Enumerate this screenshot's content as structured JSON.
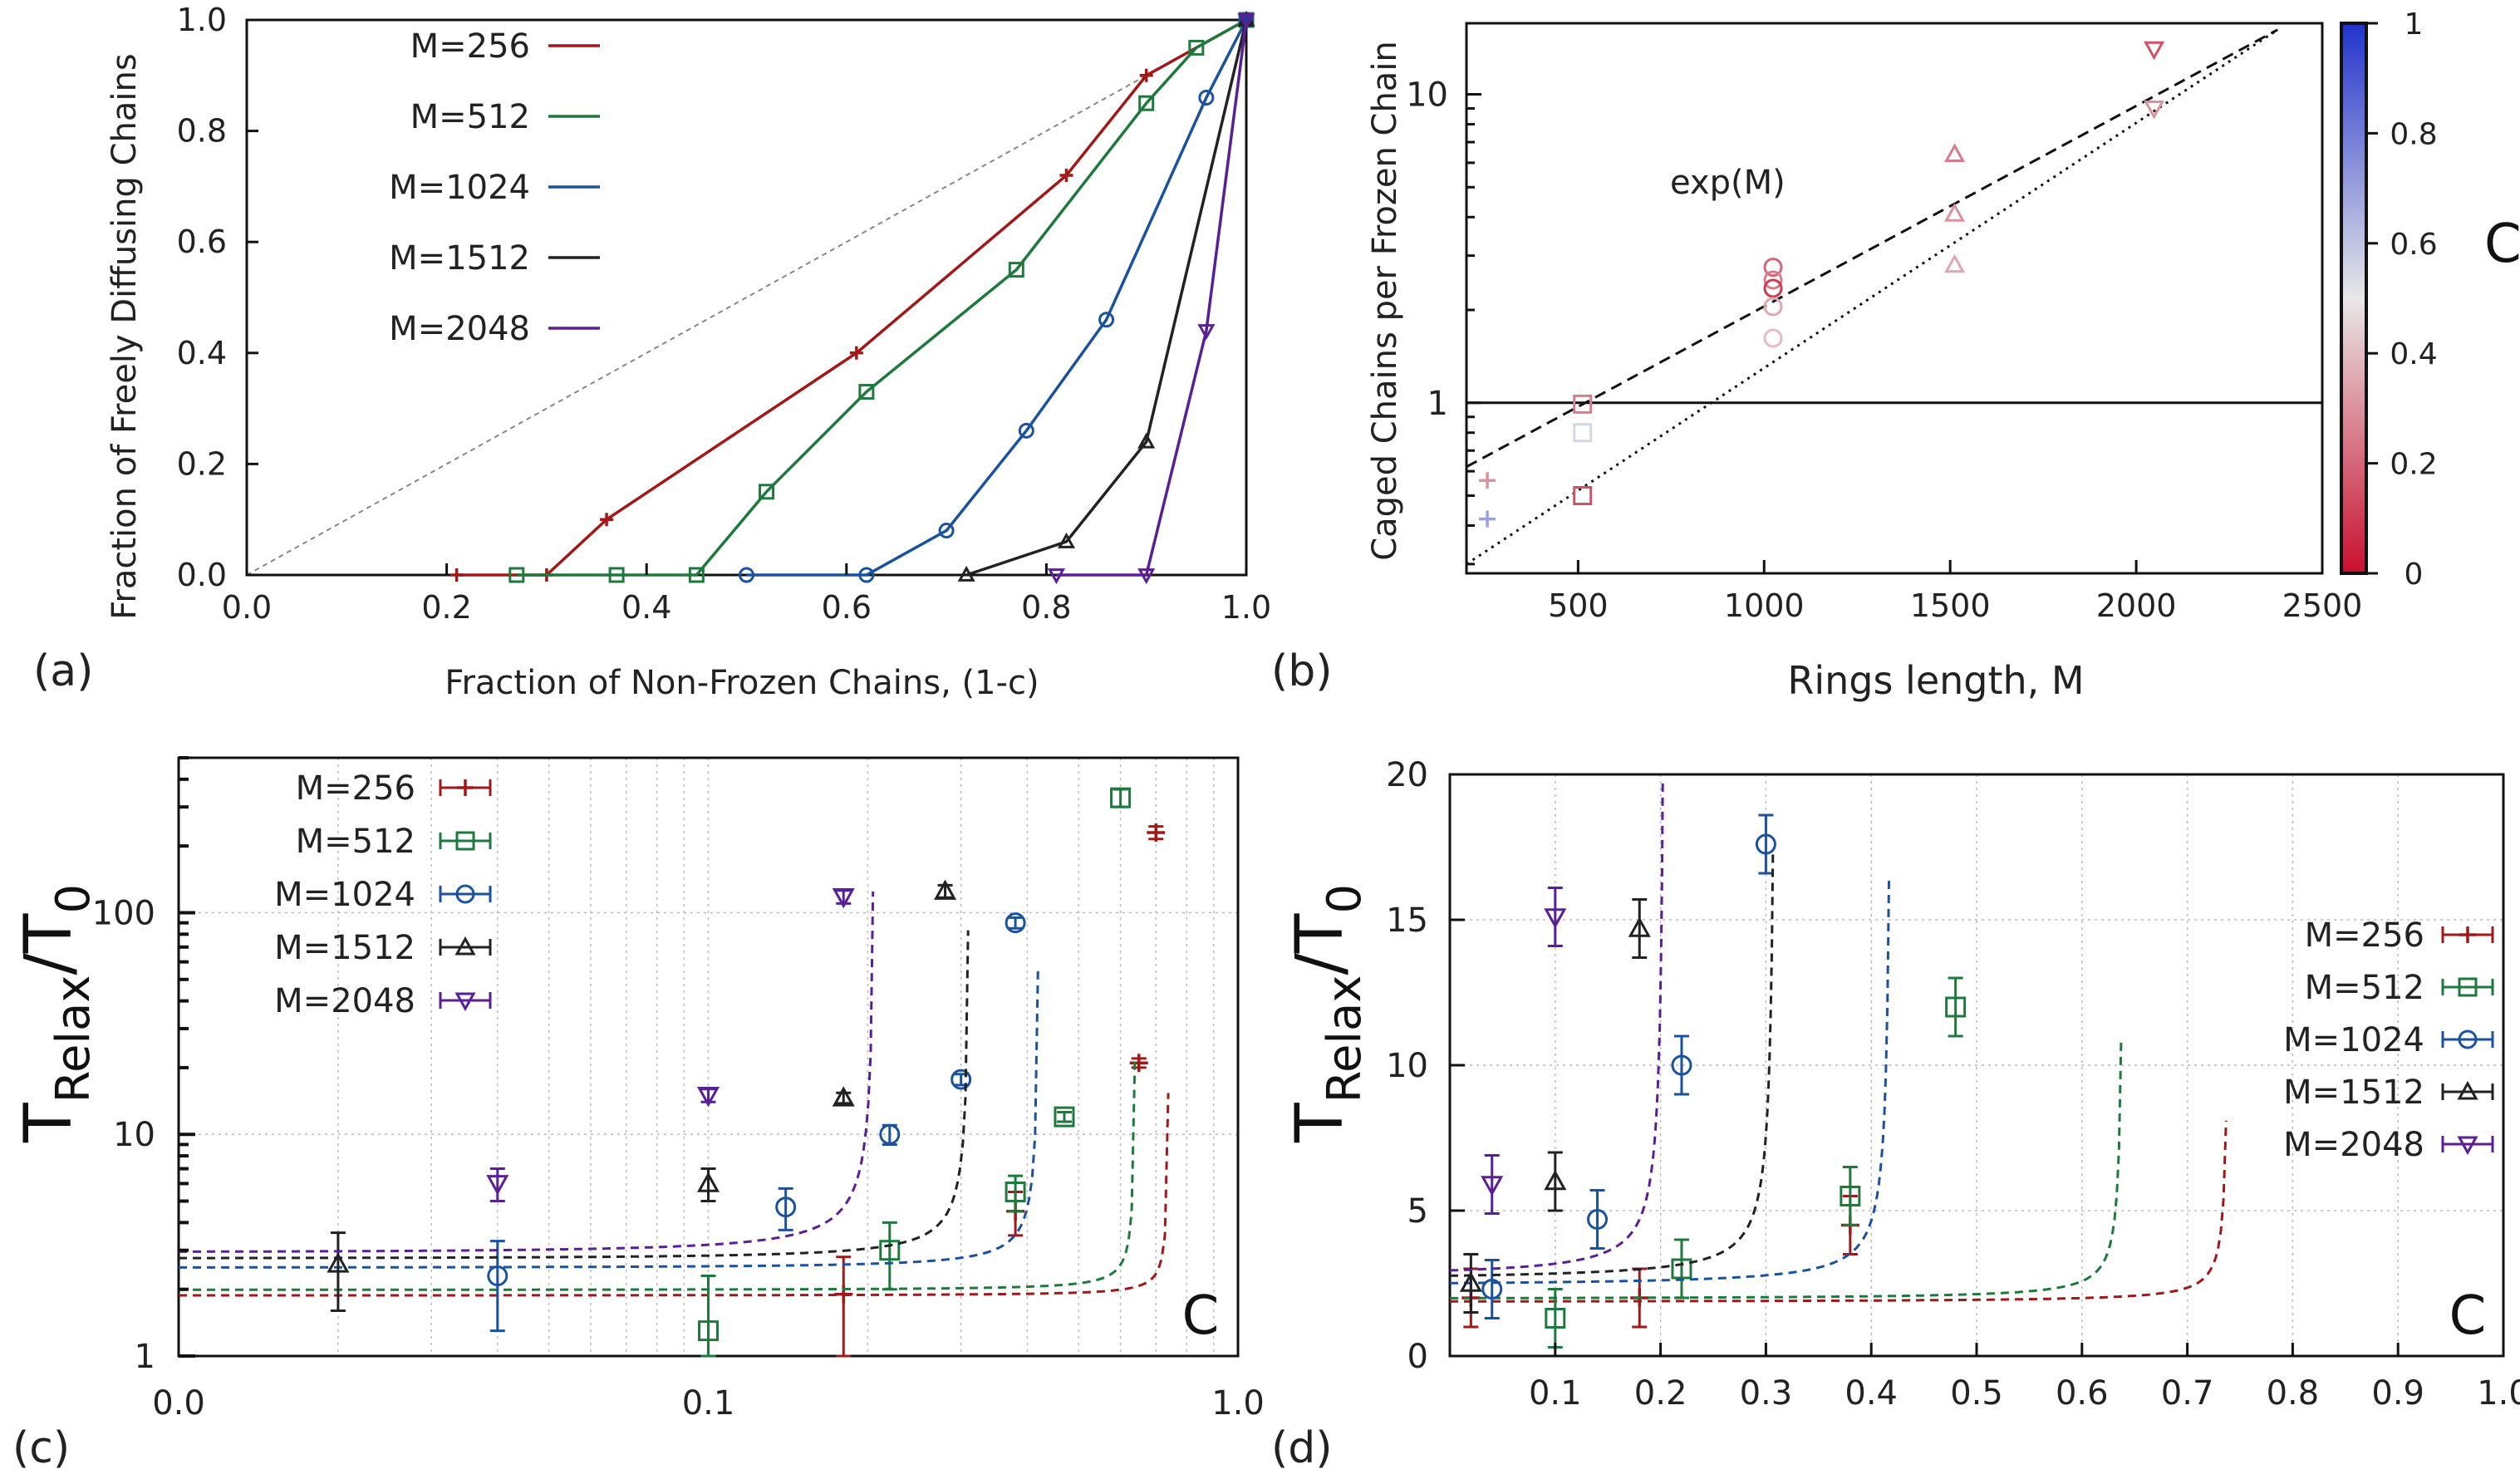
{
  "chart_data": [
    {
      "panel": "(a)",
      "type": "line",
      "xlabel": "Fraction of Non-Frozen Chains, (1-c)",
      "ylabel": "Fraction of Freely Diffusing Chains",
      "xlim": [
        0.0,
        1.0
      ],
      "ylim": [
        0.0,
        1.0
      ],
      "xticks": [
        "0.0",
        "0.2",
        "0.4",
        "0.6",
        "0.8",
        "1.0"
      ],
      "yticks": [
        "0.0",
        "0.2",
        "0.4",
        "0.6",
        "0.8",
        "1.0"
      ],
      "grid": false,
      "diagonal_reference": true,
      "legend_position": "top-left",
      "series": [
        {
          "name": "M=256",
          "color": "#a01818",
          "marker": "plus",
          "x": [
            0.21,
            0.3,
            0.36,
            0.61,
            0.82,
            0.9,
            1.0
          ],
          "y": [
            0.0,
            0.0,
            0.1,
            0.4,
            0.72,
            0.9,
            1.0
          ]
        },
        {
          "name": "M=512",
          "color": "#1e7a3c",
          "marker": "square",
          "x": [
            0.27,
            0.37,
            0.45,
            0.52,
            0.62,
            0.77,
            0.9,
            0.95,
            1.0
          ],
          "y": [
            0.0,
            0.0,
            0.0,
            0.15,
            0.33,
            0.55,
            0.85,
            0.95,
            1.0
          ]
        },
        {
          "name": "M=1024",
          "color": "#1a52a0",
          "marker": "circle",
          "x": [
            0.5,
            0.62,
            0.7,
            0.78,
            0.86,
            0.96,
            1.0
          ],
          "y": [
            0.0,
            0.0,
            0.08,
            0.26,
            0.46,
            0.86,
            1.0
          ]
        },
        {
          "name": "M=1512",
          "color": "#222222",
          "marker": "triangle-up",
          "x": [
            0.72,
            0.82,
            0.9,
            1.0
          ],
          "y": [
            0.0,
            0.06,
            0.24,
            1.0
          ]
        },
        {
          "name": "M=2048",
          "color": "#5a1e96",
          "marker": "triangle-down",
          "x": [
            0.81,
            0.9,
            0.96,
            1.0
          ],
          "y": [
            0.0,
            0.0,
            0.44,
            1.0
          ]
        }
      ]
    },
    {
      "panel": "(b)",
      "type": "scatter",
      "xlabel": "Rings length, M",
      "ylabel": "Caged Chains per Frozen Chain",
      "xlim": [
        200,
        2500
      ],
      "ylim": [
        0.28,
        17
      ],
      "yscale": "log",
      "xticks": [
        "500",
        "1000",
        "1500",
        "2000",
        "2500"
      ],
      "yticks": [
        "1",
        "10"
      ],
      "annotation": "exp(M)",
      "colorbar": {
        "label": "C",
        "ticks": [
          "0",
          "0.2",
          "0.4",
          "0.6",
          "0.8",
          "1"
        ]
      },
      "reference_lines": [
        {
          "style": "dashed",
          "x": [
            200,
            2380
          ],
          "y": [
            0.62,
            16.2
          ]
        },
        {
          "style": "dotted",
          "x": [
            200,
            2380
          ],
          "y": [
            0.3,
            16.2
          ]
        },
        {
          "style": "solid",
          "x": [
            200,
            2500
          ],
          "y": [
            1.0,
            1.0
          ]
        }
      ],
      "points": [
        {
          "M": 256,
          "y": 0.56,
          "c": 0.3,
          "marker": "plus"
        },
        {
          "M": 256,
          "y": 0.42,
          "c": 0.7,
          "marker": "plus"
        },
        {
          "M": 512,
          "y": 0.99,
          "c": 0.25,
          "marker": "square"
        },
        {
          "M": 512,
          "y": 0.8,
          "c": 0.55,
          "marker": "square"
        },
        {
          "M": 512,
          "y": 0.5,
          "c": 0.15,
          "marker": "square"
        },
        {
          "M": 1024,
          "y": 2.75,
          "c": 0.2,
          "marker": "circle"
        },
        {
          "M": 1024,
          "y": 2.5,
          "c": 0.25,
          "marker": "circle"
        },
        {
          "M": 1024,
          "y": 2.35,
          "c": 0.1,
          "marker": "circle"
        },
        {
          "M": 1024,
          "y": 2.05,
          "c": 0.35,
          "marker": "circle"
        },
        {
          "M": 1024,
          "y": 1.62,
          "c": 0.4,
          "marker": "circle"
        },
        {
          "M": 1512,
          "y": 6.4,
          "c": 0.25,
          "marker": "triangle-up"
        },
        {
          "M": 1512,
          "y": 4.1,
          "c": 0.3,
          "marker": "triangle-up"
        },
        {
          "M": 1512,
          "y": 2.8,
          "c": 0.35,
          "marker": "triangle-up"
        },
        {
          "M": 2048,
          "y": 14.0,
          "c": 0.15,
          "marker": "triangle-down"
        },
        {
          "M": 2048,
          "y": 9.0,
          "c": 0.3,
          "marker": "triangle-down"
        }
      ]
    },
    {
      "panel": "(c)",
      "type": "scatter",
      "xlabel": "C",
      "ylabel_main": "T",
      "ylabel_sub": "Relax",
      "ylabel_tail": "/T",
      "ylabel_tail_sub": "0",
      "xscale": "log",
      "yscale": "log",
      "xlim": [
        0.01,
        1.0
      ],
      "ylim": [
        1,
        500
      ],
      "xticks": [
        "0.0",
        "0.1",
        "1.0"
      ],
      "yticks": [
        "1",
        "10",
        "100"
      ],
      "grid": true,
      "legend_position": "top-left",
      "series": [
        {
          "name": "M=256",
          "color": "#a01818",
          "marker": "plus",
          "x": [
            0.18,
            0.38,
            0.65,
            0.7
          ],
          "y": [
            1.9,
            4.5,
            21,
            230
          ],
          "err": [
            0.9,
            1.0,
            1.0,
            15
          ],
          "fit": {
            "a": 1.85,
            "b": 0.02,
            "cc": 0.74
          }
        },
        {
          "name": "M=512",
          "color": "#1e7a3c",
          "marker": "square",
          "x": [
            0.1,
            0.22,
            0.38,
            0.47,
            0.6
          ],
          "y": [
            1.3,
            3.0,
            5.5,
            12,
            330
          ],
          "err": [
            1.0,
            1.0,
            1.0,
            0.6,
            30
          ],
          "fit": {
            "a": 1.95,
            "b": 0.025,
            "cc": 0.64
          }
        },
        {
          "name": "M=1024",
          "color": "#1a52a0",
          "marker": "circle",
          "x": [
            0.04,
            0.14,
            0.22,
            0.3,
            0.38
          ],
          "y": [
            2.3,
            4.7,
            10,
            17.7,
            90
          ],
          "err": [
            1.0,
            1.0,
            1.0,
            1.0,
            5
          ],
          "fit": {
            "a": 2.4,
            "b": 0.045,
            "cc": 0.42
          }
        },
        {
          "name": "M=1512",
          "color": "#222222",
          "marker": "triangle-up",
          "x": [
            0.02,
            0.1,
            0.18,
            0.28
          ],
          "y": [
            2.6,
            6.0,
            14.6,
            125
          ],
          "err": [
            1.0,
            1.0,
            0.8,
            8
          ],
          "fit": {
            "a": 2.6,
            "b": 0.05,
            "cc": 0.31
          }
        },
        {
          "name": "M=2048",
          "color": "#5a1e96",
          "marker": "triangle-down",
          "x": [
            0.04,
            0.1,
            0.18
          ],
          "y": [
            6.0,
            15,
            118
          ],
          "err": [
            1.0,
            1.0,
            8
          ],
          "fit": {
            "a": 2.7,
            "b": 0.05,
            "cc": 0.205
          }
        }
      ]
    },
    {
      "panel": "(d)",
      "type": "scatter",
      "xlabel": "C",
      "ylabel_main": "T",
      "ylabel_sub": "Relax",
      "ylabel_tail": "/T",
      "ylabel_tail_sub": "0",
      "xlim": [
        0.0,
        1.0
      ],
      "ylim": [
        0,
        20
      ],
      "xticks": [
        "0.1",
        "0.2",
        "0.3",
        "0.4",
        "0.5",
        "0.6",
        "0.7",
        "0.8",
        "0.9",
        "1.0"
      ],
      "yticks": [
        "0",
        "5",
        "10",
        "15",
        "20"
      ],
      "grid": true,
      "legend_position": "right",
      "series": [
        {
          "name": "M=256",
          "color": "#a01818",
          "marker": "plus",
          "x": [
            0.02,
            0.18,
            0.38
          ],
          "y": [
            2.0,
            2.0,
            4.5
          ],
          "err": [
            1.0,
            1.0,
            1.0
          ],
          "fit": {
            "a": 1.85,
            "b": 0.02,
            "cc": 0.74
          }
        },
        {
          "name": "M=512",
          "color": "#1e7a3c",
          "marker": "square",
          "x": [
            0.1,
            0.22,
            0.38,
            0.48
          ],
          "y": [
            1.3,
            3.0,
            5.5,
            12
          ],
          "err": [
            1.0,
            1.0,
            1.0,
            1.0
          ],
          "fit": {
            "a": 1.95,
            "b": 0.025,
            "cc": 0.64
          }
        },
        {
          "name": "M=1024",
          "color": "#1a52a0",
          "marker": "circle",
          "x": [
            0.04,
            0.14,
            0.22,
            0.3
          ],
          "y": [
            2.3,
            4.7,
            10,
            17.6
          ],
          "err": [
            1.0,
            1.0,
            1.0,
            1.0
          ],
          "fit": {
            "a": 2.4,
            "b": 0.045,
            "cc": 0.42
          }
        },
        {
          "name": "M=1512",
          "color": "#222222",
          "marker": "triangle-up",
          "x": [
            0.02,
            0.1,
            0.18
          ],
          "y": [
            2.5,
            6.0,
            14.7
          ],
          "err": [
            1.0,
            1.0,
            1.0
          ],
          "fit": {
            "a": 2.6,
            "b": 0.05,
            "cc": 0.31
          }
        },
        {
          "name": "M=2048",
          "color": "#5a1e96",
          "marker": "triangle-down",
          "x": [
            0.04,
            0.1
          ],
          "y": [
            5.9,
            15.1
          ],
          "err": [
            1.0,
            1.0
          ],
          "fit": {
            "a": 2.7,
            "b": 0.05,
            "cc": 0.205
          }
        }
      ]
    }
  ]
}
